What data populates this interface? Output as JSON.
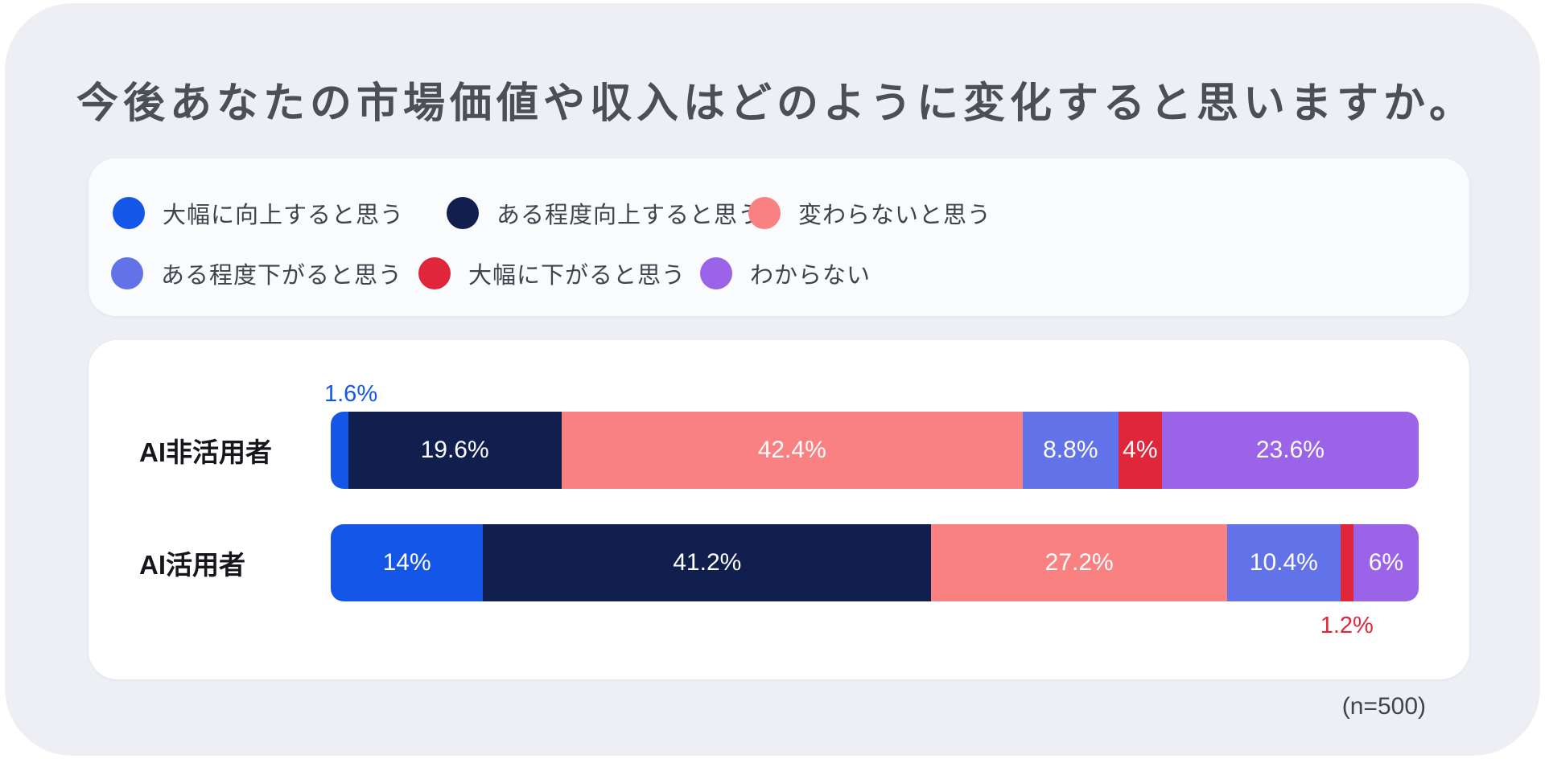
{
  "title": "今後あなたの市場価値や収入はどのように変化すると思いますか。",
  "note": "(n=500)",
  "colors": {
    "surface_background": "#EDEFF4",
    "legend_card": "#FAFBFD",
    "chart_card": "#FFFFFF",
    "title_text": "#4A5056",
    "legend_text": "#3E444B",
    "bar_value_text": "#FFFFFF"
  },
  "legend": {
    "items": [
      {
        "label": "大幅に向上すると思う",
        "color": "#1456E8"
      },
      {
        "label": "ある程度向上すると思う",
        "color": "#101F4E"
      },
      {
        "label": "変わらないと思う",
        "color": "#FA8181"
      },
      {
        "label": "ある程度下がると思う",
        "color": "#6272E8"
      },
      {
        "label": "大幅に下がると思う",
        "color": "#E0263A"
      },
      {
        "label": "わからない",
        "color": "#9B63E8"
      }
    ]
  },
  "chart_data": {
    "type": "bar",
    "stacked": true,
    "orientation": "horizontal",
    "unit": "%",
    "xlim": [
      0,
      100
    ],
    "categories": [
      "AI非活用者",
      "AI活用者"
    ],
    "series": [
      {
        "name": "大幅に向上すると思う",
        "color": "#1456E8",
        "values": [
          1.6,
          14
        ],
        "labels": [
          "1.6%",
          "14%"
        ]
      },
      {
        "name": "ある程度向上すると思う",
        "color": "#101F4E",
        "values": [
          19.6,
          41.2
        ],
        "labels": [
          "19.6%",
          "41.2%"
        ]
      },
      {
        "name": "変わらないと思う",
        "color": "#FA8181",
        "values": [
          42.4,
          27.2
        ],
        "labels": [
          "42.4%",
          "27.2%"
        ]
      },
      {
        "name": "ある程度下がると思う",
        "color": "#6272E8",
        "values": [
          8.8,
          10.4
        ],
        "labels": [
          "8.8%",
          "10.4%"
        ]
      },
      {
        "name": "大幅に下がると思う",
        "color": "#E0263A",
        "values": [
          4,
          1.2
        ],
        "labels": [
          "4%",
          "1.2%"
        ]
      },
      {
        "name": "わからない",
        "color": "#9B63E8",
        "values": [
          23.6,
          6
        ],
        "labels": [
          "23.6%",
          "6%"
        ]
      }
    ],
    "outside_labels": [
      {
        "row": 0,
        "series": 0,
        "placement": "above"
      },
      {
        "row": 1,
        "series": 4,
        "placement": "below"
      }
    ]
  }
}
